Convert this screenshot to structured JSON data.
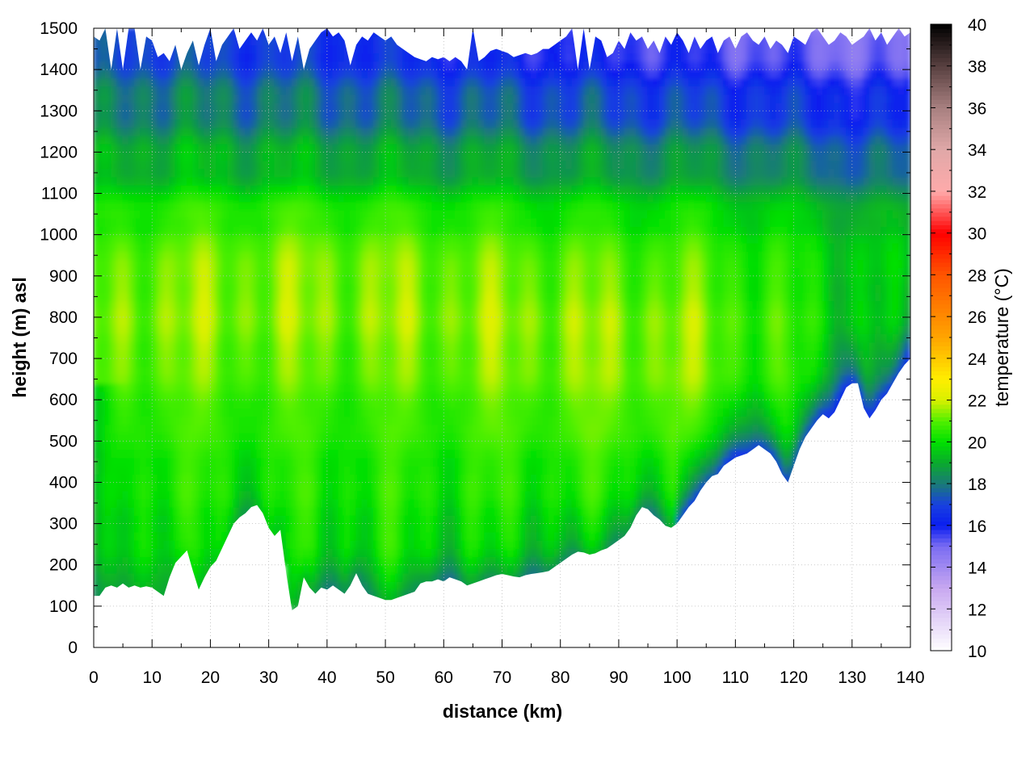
{
  "chart_data": {
    "type": "heatmap",
    "title": "",
    "xlabel": "distance (km)",
    "ylabel": "height (m) asl",
    "colorbar_label": "temperature (°C)",
    "xlim": [
      0,
      140
    ],
    "ylim": [
      0,
      1500
    ],
    "clim": [
      10,
      40
    ],
    "grid": true,
    "x_ticks": [
      "0",
      "10",
      "20",
      "30",
      "40",
      "50",
      "60",
      "70",
      "80",
      "90",
      "100",
      "110",
      "120",
      "130",
      "140"
    ],
    "y_ticks": [
      "0",
      "100",
      "200",
      "300",
      "400",
      "500",
      "600",
      "700",
      "800",
      "900",
      "1000",
      "1100",
      "1200",
      "1300",
      "1400",
      "1500"
    ],
    "colorbar_ticks": [
      "10",
      "12",
      "14",
      "16",
      "18",
      "20",
      "22",
      "24",
      "26",
      "28",
      "30",
      "32",
      "34",
      "36",
      "38",
      "40"
    ],
    "colormap": [
      {
        "t": 10,
        "color": "#ffffff"
      },
      {
        "t": 13,
        "color": "#c8a8f0"
      },
      {
        "t": 15,
        "color": "#7a6cf2"
      },
      {
        "t": 16,
        "color": "#0a1ef0"
      },
      {
        "t": 17,
        "color": "#1840e0"
      },
      {
        "t": 18,
        "color": "#1a7a78"
      },
      {
        "t": 19,
        "color": "#0aaa2e"
      },
      {
        "t": 20,
        "color": "#00e000"
      },
      {
        "t": 21,
        "color": "#50f000"
      },
      {
        "t": 22,
        "color": "#d8f000"
      },
      {
        "t": 23,
        "color": "#ffee00"
      },
      {
        "t": 25,
        "color": "#ffa500"
      },
      {
        "t": 28,
        "color": "#ff5500"
      },
      {
        "t": 30,
        "color": "#ff0000"
      },
      {
        "t": 32,
        "color": "#ffaaaa"
      },
      {
        "t": 34,
        "color": "#e0a8a8"
      },
      {
        "t": 36,
        "color": "#a88080"
      },
      {
        "t": 38,
        "color": "#584040"
      },
      {
        "t": 40,
        "color": "#000000"
      }
    ],
    "terrain": [
      [
        0,
        125
      ],
      [
        1,
        125
      ],
      [
        2,
        145
      ],
      [
        3,
        150
      ],
      [
        4,
        145
      ],
      [
        5,
        155
      ],
      [
        6,
        145
      ],
      [
        7,
        150
      ],
      [
        8,
        145
      ],
      [
        9,
        148
      ],
      [
        10,
        145
      ],
      [
        11,
        135
      ],
      [
        12,
        125
      ],
      [
        13,
        170
      ],
      [
        14,
        205
      ],
      [
        15,
        220
      ],
      [
        16,
        235
      ],
      [
        17,
        185
      ],
      [
        18,
        140
      ],
      [
        19,
        170
      ],
      [
        20,
        195
      ],
      [
        21,
        210
      ],
      [
        22,
        240
      ],
      [
        23,
        270
      ],
      [
        24,
        300
      ],
      [
        25,
        315
      ],
      [
        26,
        325
      ],
      [
        27,
        340
      ],
      [
        28,
        345
      ],
      [
        29,
        325
      ],
      [
        30,
        290
      ],
      [
        31,
        270
      ],
      [
        32,
        285
      ],
      [
        33,
        180
      ],
      [
        34,
        90
      ],
      [
        35,
        100
      ],
      [
        36,
        170
      ],
      [
        37,
        145
      ],
      [
        38,
        130
      ],
      [
        39,
        145
      ],
      [
        40,
        140
      ],
      [
        41,
        150
      ],
      [
        42,
        140
      ],
      [
        43,
        130
      ],
      [
        44,
        150
      ],
      [
        45,
        180
      ],
      [
        46,
        150
      ],
      [
        47,
        130
      ],
      [
        48,
        125
      ],
      [
        49,
        120
      ],
      [
        50,
        115
      ],
      [
        51,
        115
      ],
      [
        52,
        120
      ],
      [
        53,
        125
      ],
      [
        54,
        130
      ],
      [
        55,
        135
      ],
      [
        56,
        155
      ],
      [
        57,
        160
      ],
      [
        58,
        160
      ],
      [
        59,
        165
      ],
      [
        60,
        160
      ],
      [
        61,
        170
      ],
      [
        62,
        165
      ],
      [
        63,
        160
      ],
      [
        64,
        150
      ],
      [
        65,
        155
      ],
      [
        66,
        160
      ],
      [
        67,
        165
      ],
      [
        68,
        170
      ],
      [
        69,
        175
      ],
      [
        70,
        178
      ],
      [
        71,
        175
      ],
      [
        72,
        172
      ],
      [
        73,
        170
      ],
      [
        74,
        175
      ],
      [
        75,
        178
      ],
      [
        76,
        180
      ],
      [
        77,
        182
      ],
      [
        78,
        185
      ],
      [
        79,
        195
      ],
      [
        80,
        205
      ],
      [
        81,
        215
      ],
      [
        82,
        225
      ],
      [
        83,
        232
      ],
      [
        84,
        230
      ],
      [
        85,
        225
      ],
      [
        86,
        228
      ],
      [
        87,
        235
      ],
      [
        88,
        240
      ],
      [
        89,
        250
      ],
      [
        90,
        260
      ],
      [
        91,
        270
      ],
      [
        92,
        290
      ],
      [
        93,
        320
      ],
      [
        94,
        340
      ],
      [
        95,
        335
      ],
      [
        96,
        320
      ],
      [
        97,
        310
      ],
      [
        98,
        295
      ],
      [
        99,
        290
      ],
      [
        100,
        300
      ],
      [
        101,
        320
      ],
      [
        102,
        340
      ],
      [
        103,
        355
      ],
      [
        104,
        380
      ],
      [
        105,
        400
      ],
      [
        106,
        415
      ],
      [
        107,
        420
      ],
      [
        108,
        440
      ],
      [
        109,
        450
      ],
      [
        110,
        460
      ],
      [
        111,
        465
      ],
      [
        112,
        470
      ],
      [
        113,
        480
      ],
      [
        114,
        490
      ],
      [
        115,
        480
      ],
      [
        116,
        470
      ],
      [
        117,
        450
      ],
      [
        118,
        420
      ],
      [
        119,
        400
      ],
      [
        120,
        440
      ],
      [
        121,
        480
      ],
      [
        122,
        510
      ],
      [
        123,
        530
      ],
      [
        124,
        550
      ],
      [
        125,
        565
      ],
      [
        126,
        555
      ],
      [
        127,
        570
      ],
      [
        128,
        600
      ],
      [
        129,
        630
      ],
      [
        130,
        640
      ],
      [
        131,
        640
      ],
      [
        132,
        580
      ],
      [
        133,
        555
      ],
      [
        134,
        575
      ],
      [
        135,
        600
      ],
      [
        136,
        615
      ],
      [
        137,
        640
      ],
      [
        138,
        665
      ],
      [
        139,
        685
      ],
      [
        140,
        700
      ]
    ],
    "upper_bound": [
      [
        0,
        1480
      ],
      [
        1,
        1470
      ],
      [
        2,
        1500
      ],
      [
        3,
        1400
      ],
      [
        4,
        1500
      ],
      [
        5,
        1400
      ],
      [
        6,
        1500
      ],
      [
        7,
        1500
      ],
      [
        8,
        1400
      ],
      [
        9,
        1480
      ],
      [
        10,
        1470
      ],
      [
        11,
        1430
      ],
      [
        12,
        1440
      ],
      [
        13,
        1420
      ],
      [
        14,
        1460
      ],
      [
        15,
        1400
      ],
      [
        16,
        1440
      ],
      [
        17,
        1470
      ],
      [
        18,
        1410
      ],
      [
        19,
        1460
      ],
      [
        20,
        1500
      ],
      [
        21,
        1420
      ],
      [
        22,
        1460
      ],
      [
        23,
        1480
      ],
      [
        24,
        1500
      ],
      [
        25,
        1450
      ],
      [
        26,
        1470
      ],
      [
        27,
        1490
      ],
      [
        28,
        1470
      ],
      [
        29,
        1500
      ],
      [
        30,
        1460
      ],
      [
        31,
        1480
      ],
      [
        32,
        1440
      ],
      [
        33,
        1490
      ],
      [
        34,
        1420
      ],
      [
        35,
        1480
      ],
      [
        36,
        1400
      ],
      [
        37,
        1450
      ],
      [
        38,
        1470
      ],
      [
        39,
        1490
      ],
      [
        40,
        1500
      ],
      [
        41,
        1480
      ],
      [
        42,
        1490
      ],
      [
        43,
        1470
      ],
      [
        44,
        1410
      ],
      [
        45,
        1460
      ],
      [
        46,
        1480
      ],
      [
        47,
        1470
      ],
      [
        48,
        1490
      ],
      [
        49,
        1480
      ],
      [
        50,
        1470
      ],
      [
        51,
        1480
      ],
      [
        52,
        1460
      ],
      [
        53,
        1450
      ],
      [
        54,
        1440
      ],
      [
        55,
        1430
      ],
      [
        56,
        1425
      ],
      [
        57,
        1420
      ],
      [
        58,
        1430
      ],
      [
        59,
        1425
      ],
      [
        60,
        1430
      ],
      [
        61,
        1420
      ],
      [
        62,
        1430
      ],
      [
        63,
        1420
      ],
      [
        64,
        1400
      ],
      [
        65,
        1500
      ],
      [
        66,
        1420
      ],
      [
        67,
        1430
      ],
      [
        68,
        1445
      ],
      [
        69,
        1450
      ],
      [
        70,
        1445
      ],
      [
        71,
        1440
      ],
      [
        72,
        1430
      ],
      [
        73,
        1435
      ],
      [
        74,
        1440
      ],
      [
        75,
        1435
      ],
      [
        76,
        1440
      ],
      [
        77,
        1450
      ],
      [
        78,
        1450
      ],
      [
        79,
        1460
      ],
      [
        80,
        1470
      ],
      [
        81,
        1480
      ],
      [
        82,
        1500
      ],
      [
        83,
        1400
      ],
      [
        84,
        1500
      ],
      [
        85,
        1400
      ],
      [
        86,
        1480
      ],
      [
        87,
        1470
      ],
      [
        88,
        1430
      ],
      [
        89,
        1440
      ],
      [
        90,
        1470
      ],
      [
        91,
        1450
      ],
      [
        92,
        1490
      ],
      [
        93,
        1470
      ],
      [
        94,
        1480
      ],
      [
        95,
        1450
      ],
      [
        96,
        1470
      ],
      [
        97,
        1440
      ],
      [
        98,
        1480
      ],
      [
        99,
        1460
      ],
      [
        100,
        1490
      ],
      [
        101,
        1470
      ],
      [
        102,
        1440
      ],
      [
        103,
        1480
      ],
      [
        104,
        1450
      ],
      [
        105,
        1470
      ],
      [
        106,
        1480
      ],
      [
        107,
        1440
      ],
      [
        108,
        1470
      ],
      [
        109,
        1480
      ],
      [
        110,
        1450
      ],
      [
        111,
        1480
      ],
      [
        112,
        1490
      ],
      [
        113,
        1470
      ],
      [
        114,
        1460
      ],
      [
        115,
        1480
      ],
      [
        116,
        1450
      ],
      [
        117,
        1470
      ],
      [
        118,
        1460
      ],
      [
        119,
        1440
      ],
      [
        120,
        1480
      ],
      [
        121,
        1470
      ],
      [
        122,
        1460
      ],
      [
        123,
        1490
      ],
      [
        124,
        1500
      ],
      [
        125,
        1480
      ],
      [
        126,
        1460
      ],
      [
        127,
        1470
      ],
      [
        128,
        1490
      ],
      [
        129,
        1480
      ],
      [
        130,
        1460
      ],
      [
        131,
        1470
      ],
      [
        132,
        1480
      ],
      [
        133,
        1500
      ],
      [
        134,
        1470
      ],
      [
        135,
        1490
      ],
      [
        136,
        1460
      ],
      [
        137,
        1480
      ],
      [
        138,
        1500
      ],
      [
        139,
        1480
      ],
      [
        140,
        1490
      ]
    ]
  }
}
